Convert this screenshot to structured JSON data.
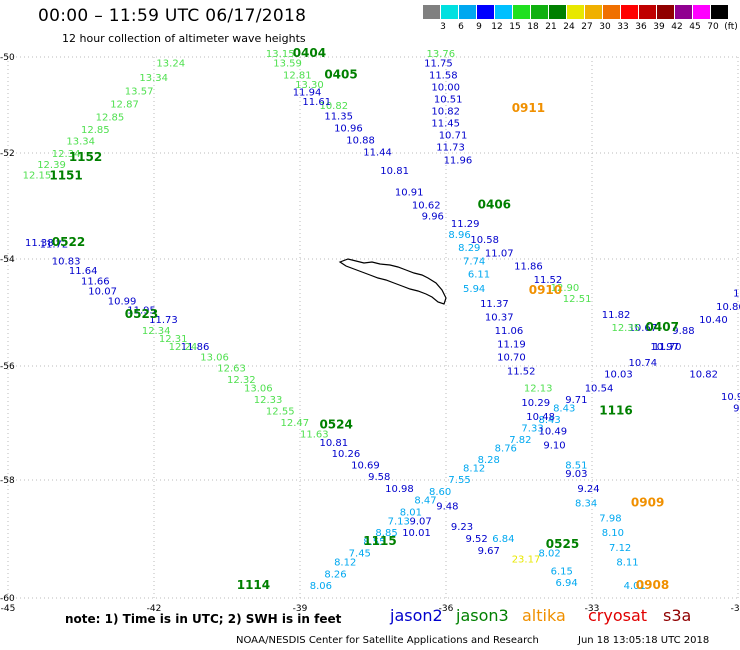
{
  "header": {
    "title": "00:00 – 11:59 UTC 06/17/2018",
    "subtitle": "12 hour collection of altimeter wave heights"
  },
  "scale": {
    "colors": [
      "#808080",
      "#00e0e0",
      "#00a8f0",
      "#0000ff",
      "#00c0ff",
      "#20e020",
      "#10b010",
      "#008000",
      "#e8e800",
      "#f0b000",
      "#f07000",
      "#ff0000",
      "#c00000",
      "#900000",
      "#900090",
      "#ff00ff",
      "#000000"
    ],
    "labels": [
      "3",
      "6",
      "9",
      "12",
      "15",
      "18",
      "21",
      "24",
      "27",
      "30",
      "33",
      "36",
      "39",
      "42",
      "45",
      "70",
      "(ft)"
    ]
  },
  "axes": {
    "lat_labels": [
      "-50",
      "-52",
      "-54",
      "-56",
      "-58",
      "-60"
    ],
    "lon_labels": [
      "-45",
      "-42",
      "-39",
      "-36",
      "-33",
      "-30"
    ]
  },
  "tracks": [
    {
      "color": "#50e050",
      "points": [
        {
          "x": -44.7,
          "y": -52.48,
          "v": "12.15"
        },
        {
          "x": -44.4,
          "y": -52.28,
          "v": "12.39"
        },
        {
          "x": -44.1,
          "y": -52.08,
          "v": "12.34"
        },
        {
          "x": -43.8,
          "y": -51.82,
          "v": "13.34"
        },
        {
          "x": -43.5,
          "y": -51.58,
          "v": "12.85"
        },
        {
          "x": -43.2,
          "y": -51.32,
          "v": "12.85"
        },
        {
          "x": -42.9,
          "y": -51.05,
          "v": "12.87"
        },
        {
          "x": -42.6,
          "y": -50.78,
          "v": "13.57"
        },
        {
          "x": -42.3,
          "y": -50.5,
          "v": "13.34"
        },
        {
          "x": -41.95,
          "y": -50.2,
          "v": "13.24"
        }
      ]
    },
    {
      "color": "#50e050",
      "points": [
        {
          "x": -39.7,
          "y": -50.0,
          "v": "13.15"
        },
        {
          "x": -39.55,
          "y": -50.2,
          "v": "13.59"
        },
        {
          "x": -39.35,
          "y": -50.45,
          "v": "12.81"
        },
        {
          "x": -39.1,
          "y": -50.65,
          "v": "13.30"
        },
        {
          "x": -38.6,
          "y": -51.08,
          "v": "10.82"
        },
        {
          "x": -36.4,
          "y": -50.0,
          "v": "13.76"
        }
      ]
    },
    {
      "color": "#0000cc",
      "points": [
        {
          "x": -39.15,
          "y": -50.8,
          "v": "11.94"
        },
        {
          "x": -38.95,
          "y": -51.0,
          "v": "11.61"
        },
        {
          "x": -38.5,
          "y": -51.3,
          "v": "11.35"
        },
        {
          "x": -38.3,
          "y": -51.55,
          "v": "10.96"
        },
        {
          "x": -38.05,
          "y": -51.8,
          "v": "10.88"
        },
        {
          "x": -37.7,
          "y": -52.05,
          "v": "11.44"
        },
        {
          "x": -37.35,
          "y": -52.4,
          "v": "10.81"
        },
        {
          "x": -37.05,
          "y": -52.8,
          "v": "10.91"
        },
        {
          "x": -36.7,
          "y": -53.05,
          "v": "10.62"
        },
        {
          "x": -36.5,
          "y": -53.25,
          "v": "9.96"
        },
        {
          "x": -35.9,
          "y": -53.4,
          "v": "11.29"
        },
        {
          "x": -35.5,
          "y": -53.7,
          "v": "10.58"
        },
        {
          "x": -35.2,
          "y": -53.95,
          "v": "11.07"
        },
        {
          "x": -34.6,
          "y": -54.2,
          "v": "11.86"
        },
        {
          "x": -34.2,
          "y": -54.45,
          "v": "11.52"
        },
        {
          "x": -32.8,
          "y": -55.1,
          "v": "11.82"
        },
        {
          "x": -32.25,
          "y": -55.35,
          "v": "10.67"
        },
        {
          "x": -31.75,
          "y": -55.7,
          "v": "11.70"
        },
        {
          "x": -31.0,
          "y": -56.2,
          "v": "10.82"
        },
        {
          "x": -30.35,
          "y": -56.6,
          "v": "10.92"
        },
        {
          "x": -30.1,
          "y": -56.8,
          "v": "9.51"
        }
      ]
    },
    {
      "color": "#0000cc",
      "points": [
        {
          "x": -36.45,
          "y": -50.2,
          "v": "11.75"
        },
        {
          "x": -36.35,
          "y": -50.45,
          "v": "11.58"
        },
        {
          "x": -36.3,
          "y": -50.7,
          "v": "10.00"
        },
        {
          "x": -36.25,
          "y": -50.95,
          "v": "10.51"
        },
        {
          "x": -36.3,
          "y": -51.2,
          "v": "10.82"
        },
        {
          "x": -36.3,
          "y": -51.45,
          "v": "11.45"
        },
        {
          "x": -36.15,
          "y": -51.7,
          "v": "10.71"
        },
        {
          "x": -36.2,
          "y": -51.95,
          "v": "11.73"
        },
        {
          "x": -36.05,
          "y": -52.2,
          "v": "11.96"
        }
      ]
    },
    {
      "color": "#0000cc",
      "points": [
        {
          "x": -44.35,
          "y": -53.78,
          "v": "11.72"
        },
        {
          "x": -44.65,
          "y": -53.75,
          "v": "11.38"
        },
        {
          "x": -44.1,
          "y": -54.1,
          "v": "10.83"
        },
        {
          "x": -43.75,
          "y": -54.28,
          "v": "11.64"
        },
        {
          "x": -43.5,
          "y": -54.48,
          "v": "11.66"
        },
        {
          "x": -43.35,
          "y": -54.66,
          "v": "10.07"
        },
        {
          "x": -42.95,
          "y": -54.85,
          "v": "10.99"
        },
        {
          "x": -42.55,
          "y": -55.02,
          "v": "11.95"
        },
        {
          "x": -42.1,
          "y": -55.2,
          "v": "11.73"
        },
        {
          "x": -41.45,
          "y": -55.7,
          "v": "11.86"
        }
      ]
    },
    {
      "color": "#50e050",
      "points": [
        {
          "x": -42.25,
          "y": -55.4,
          "v": "12.34"
        },
        {
          "x": -41.9,
          "y": -55.55,
          "v": "12.31"
        },
        {
          "x": -41.7,
          "y": -55.7,
          "v": "12.24"
        },
        {
          "x": -41.05,
          "y": -55.9,
          "v": "13.06"
        },
        {
          "x": -40.7,
          "y": -56.1,
          "v": "12.63"
        },
        {
          "x": -40.5,
          "y": -56.3,
          "v": "12.32"
        },
        {
          "x": -40.15,
          "y": -56.45,
          "v": "13.06"
        },
        {
          "x": -39.95,
          "y": -56.65,
          "v": "12.33"
        },
        {
          "x": -39.7,
          "y": -56.85,
          "v": "12.55"
        },
        {
          "x": -39.4,
          "y": -57.05,
          "v": "12.47"
        },
        {
          "x": -39.0,
          "y": -57.25,
          "v": "11.63"
        }
      ]
    },
    {
      "color": "#0000cc",
      "points": [
        {
          "x": -38.6,
          "y": -57.4,
          "v": "10.81"
        },
        {
          "x": -38.35,
          "y": -57.6,
          "v": "10.26"
        },
        {
          "x": -37.95,
          "y": -57.8,
          "v": "10.69"
        },
        {
          "x": -37.6,
          "y": -58.0,
          "v": "9.58"
        },
        {
          "x": -37.25,
          "y": -58.2,
          "v": "10.98"
        },
        {
          "x": -35.9,
          "y": -58.85,
          "v": "9.23"
        },
        {
          "x": -35.6,
          "y": -59.05,
          "v": "9.52"
        },
        {
          "x": -35.35,
          "y": -59.25,
          "v": "9.67"
        },
        {
          "x": -36.2,
          "y": -58.5,
          "v": "9.48"
        }
      ]
    },
    {
      "color": "#00a8f0",
      "points": [
        {
          "x": -38.8,
          "y": -59.85,
          "v": "8.06"
        },
        {
          "x": -38.5,
          "y": -59.65,
          "v": "8.26"
        },
        {
          "x": -38.3,
          "y": -59.45,
          "v": "8.12"
        },
        {
          "x": -38.0,
          "y": -59.3,
          "v": "7.45"
        },
        {
          "x": -37.7,
          "y": -59.1,
          "v": "8.55"
        },
        {
          "x": -37.45,
          "y": -58.95,
          "v": "8.85"
        },
        {
          "x": -37.2,
          "y": -58.75,
          "v": "7.13"
        },
        {
          "x": -36.95,
          "y": -58.6,
          "v": "8.01"
        },
        {
          "x": -36.65,
          "y": -58.4,
          "v": "8.47"
        },
        {
          "x": -36.35,
          "y": -58.25,
          "v": "8.60"
        },
        {
          "x": -35.95,
          "y": -58.05,
          "v": "7.55"
        },
        {
          "x": -35.65,
          "y": -57.85,
          "v": "8.12"
        },
        {
          "x": -35.35,
          "y": -57.7,
          "v": "8.28"
        },
        {
          "x": -35.0,
          "y": -57.5,
          "v": "8.76"
        },
        {
          "x": -34.7,
          "y": -57.35,
          "v": "7.82"
        },
        {
          "x": -34.45,
          "y": -57.15,
          "v": "7.33"
        },
        {
          "x": -34.1,
          "y": -57.0,
          "v": "8.43"
        },
        {
          "x": -33.8,
          "y": -56.8,
          "v": "8.43"
        }
      ]
    },
    {
      "color": "#0000cc",
      "points": [
        {
          "x": -36.75,
          "y": -58.75,
          "v": "9.07"
        },
        {
          "x": -36.9,
          "y": -58.95,
          "v": "10.01"
        },
        {
          "x": -33.55,
          "y": -56.65,
          "v": "9.71"
        },
        {
          "x": -33.15,
          "y": -56.45,
          "v": "10.54"
        },
        {
          "x": -32.75,
          "y": -56.2,
          "v": "10.03"
        },
        {
          "x": -32.25,
          "y": -56.0,
          "v": "10.74"
        },
        {
          "x": -31.8,
          "y": -55.7,
          "v": "10.97"
        },
        {
          "x": -31.35,
          "y": -55.4,
          "v": "9.88"
        },
        {
          "x": -30.8,
          "y": -55.2,
          "v": "10.40"
        },
        {
          "x": -30.45,
          "y": -54.95,
          "v": "10.86"
        },
        {
          "x": -30.1,
          "y": -54.7,
          "v": "11.4"
        }
      ]
    },
    {
      "color": "#00a8f0",
      "points": [
        {
          "x": -35.95,
          "y": -53.6,
          "v": "8.96"
        },
        {
          "x": -35.75,
          "y": -53.85,
          "v": "8.29"
        },
        {
          "x": -35.65,
          "y": -54.1,
          "v": "7.74"
        },
        {
          "x": -35.55,
          "y": -54.35,
          "v": "6.11"
        },
        {
          "x": -35.65,
          "y": -54.62,
          "v": "5.94"
        }
      ]
    },
    {
      "color": "#0000cc",
      "points": [
        {
          "x": -35.3,
          "y": -54.9,
          "v": "11.37"
        },
        {
          "x": -35.2,
          "y": -55.15,
          "v": "10.37"
        },
        {
          "x": -35.0,
          "y": -55.4,
          "v": "11.06"
        },
        {
          "x": -34.95,
          "y": -55.65,
          "v": "11.19"
        },
        {
          "x": -34.95,
          "y": -55.9,
          "v": "10.70"
        },
        {
          "x": -34.75,
          "y": -56.15,
          "v": "11.52"
        },
        {
          "x": -34.45,
          "y": -56.7,
          "v": "10.29"
        },
        {
          "x": -34.35,
          "y": -56.95,
          "v": "10.48"
        },
        {
          "x": -34.1,
          "y": -57.2,
          "v": "10.49"
        },
        {
          "x": -34.0,
          "y": -57.45,
          "v": "9.10"
        },
        {
          "x": -33.55,
          "y": -57.95,
          "v": "9.03"
        },
        {
          "x": -33.3,
          "y": -58.2,
          "v": "9.24"
        }
      ]
    },
    {
      "color": "#00a8f0",
      "points": [
        {
          "x": -33.35,
          "y": -58.45,
          "v": "8.34"
        },
        {
          "x": -32.85,
          "y": -58.7,
          "v": "7.98"
        },
        {
          "x": -32.8,
          "y": -58.95,
          "v": "8.10"
        },
        {
          "x": -32.65,
          "y": -59.2,
          "v": "7.12"
        },
        {
          "x": -32.5,
          "y": -59.45,
          "v": "8.11"
        },
        {
          "x": -32.35,
          "y": -59.85,
          "v": "4.01"
        },
        {
          "x": -34.1,
          "y": -59.3,
          "v": "8.02"
        },
        {
          "x": -35.05,
          "y": -59.05,
          "v": "6.84"
        },
        {
          "x": -33.85,
          "y": -59.6,
          "v": "6.15"
        },
        {
          "x": -33.75,
          "y": -59.8,
          "v": "6.94"
        },
        {
          "x": -33.55,
          "y": -57.8,
          "v": "8.51"
        }
      ]
    },
    {
      "color": "#50e050",
      "points": [
        {
          "x": -34.4,
          "y": -56.45,
          "v": "12.13"
        },
        {
          "x": -33.85,
          "y": -54.6,
          "v": "12.90"
        },
        {
          "x": -33.6,
          "y": -54.8,
          "v": "12.51"
        },
        {
          "x": -32.6,
          "y": -55.35,
          "v": "12.35"
        }
      ]
    },
    {
      "color": "#e8e800",
      "points": [
        {
          "x": -34.65,
          "y": -59.4,
          "v": "23.17"
        }
      ]
    }
  ],
  "pass_labels": [
    {
      "x": -39.15,
      "y": -50.0,
      "v": "0404",
      "c": "#008000"
    },
    {
      "x": -38.5,
      "y": -50.45,
      "v": "0405",
      "c": "#008000"
    },
    {
      "x": -34.65,
      "y": -51.15,
      "v": "0911",
      "c": "#f09000"
    },
    {
      "x": -43.75,
      "y": -52.15,
      "v": "1152",
      "c": "#008000"
    },
    {
      "x": -44.15,
      "y": -52.5,
      "v": "1151",
      "c": "#008000"
    },
    {
      "x": -35.35,
      "y": -53.05,
      "v": "0406",
      "c": "#008000"
    },
    {
      "x": -44.1,
      "y": -53.75,
      "v": "0522",
      "c": "#008000"
    },
    {
      "x": -34.3,
      "y": -54.65,
      "v": "0910",
      "c": "#f09000"
    },
    {
      "x": -42.6,
      "y": -55.1,
      "v": "0523",
      "c": "#008000"
    },
    {
      "x": -31.9,
      "y": -55.35,
      "v": "0407",
      "c": "#008000"
    },
    {
      "x": -32.85,
      "y": -56.85,
      "v": "1116",
      "c": "#008000"
    },
    {
      "x": -38.6,
      "y": -57.1,
      "v": "0524",
      "c": "#008000"
    },
    {
      "x": -32.2,
      "y": -58.45,
      "v": "0909",
      "c": "#f09000"
    },
    {
      "x": -37.7,
      "y": -59.1,
      "v": "1115",
      "c": "#008000"
    },
    {
      "x": -33.95,
      "y": -59.15,
      "v": "0525",
      "c": "#008000"
    },
    {
      "x": -40.3,
      "y": -59.85,
      "v": "1114",
      "c": "#008000"
    },
    {
      "x": -32.1,
      "y": -59.85,
      "v": "0908",
      "c": "#f09000"
    }
  ],
  "footer": {
    "note": "note: 1) Time is in UTC; 2) SWH is in feet",
    "satellites": [
      {
        "name": "jason2",
        "color": "#0000cc"
      },
      {
        "name": "jason3",
        "color": "#008000"
      },
      {
        "name": "altika",
        "color": "#f09000"
      },
      {
        "name": "cryosat",
        "color": "#e00000"
      },
      {
        "name": "s3a",
        "color": "#900000"
      }
    ],
    "credit": "NOAA/NESDIS Center for Satellite Applications and Research",
    "timestamp": "Jun 18 13:05:18 UTC 2018"
  }
}
